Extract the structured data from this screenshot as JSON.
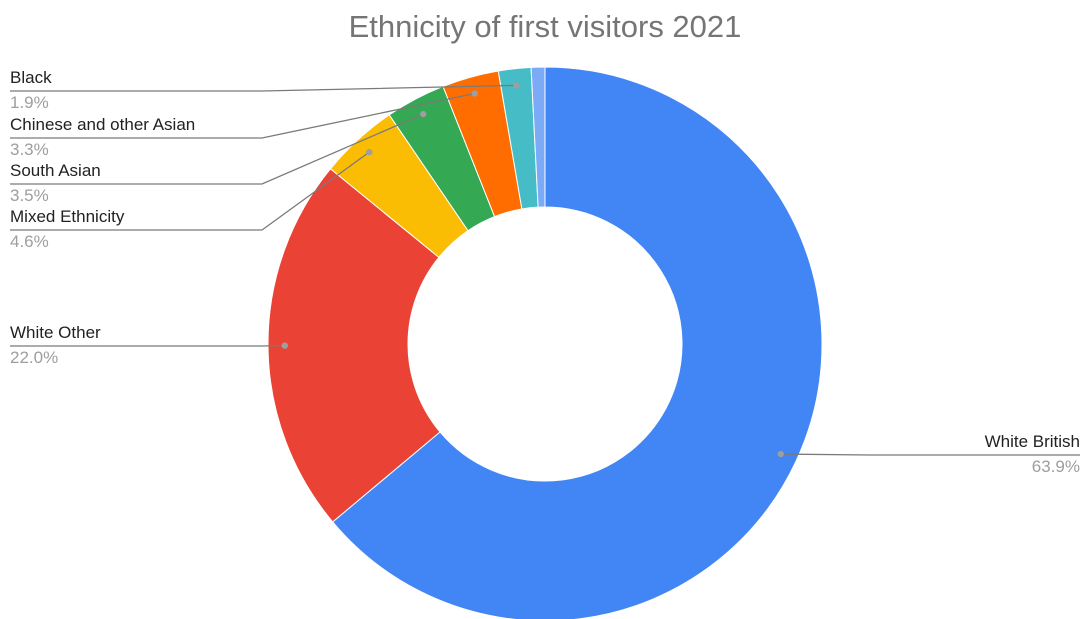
{
  "chart_data": {
    "type": "pie",
    "title": "Ethnicity of first visitors 2021",
    "donut": true,
    "legend": "outside labels with leader lines",
    "slices": [
      {
        "label": "White British",
        "value": 63.9,
        "display": "63.9%",
        "color": "#4285f4"
      },
      {
        "label": "White Other",
        "value": 22.0,
        "display": "22.0%",
        "color": "#ea4335"
      },
      {
        "label": "Mixed Ethnicity",
        "value": 4.6,
        "display": "4.6%",
        "color": "#fbbc04"
      },
      {
        "label": "South Asian",
        "value": 3.5,
        "display": "3.5%",
        "color": "#34a853"
      },
      {
        "label": "Chinese and other Asian",
        "value": 3.3,
        "display": "3.3%",
        "color": "#ff6d01"
      },
      {
        "label": "Black",
        "value": 1.9,
        "display": "1.9%",
        "color": "#46bdc6"
      },
      {
        "label": "",
        "value": 0.8,
        "display": "",
        "color": "#7baaf7"
      }
    ]
  }
}
